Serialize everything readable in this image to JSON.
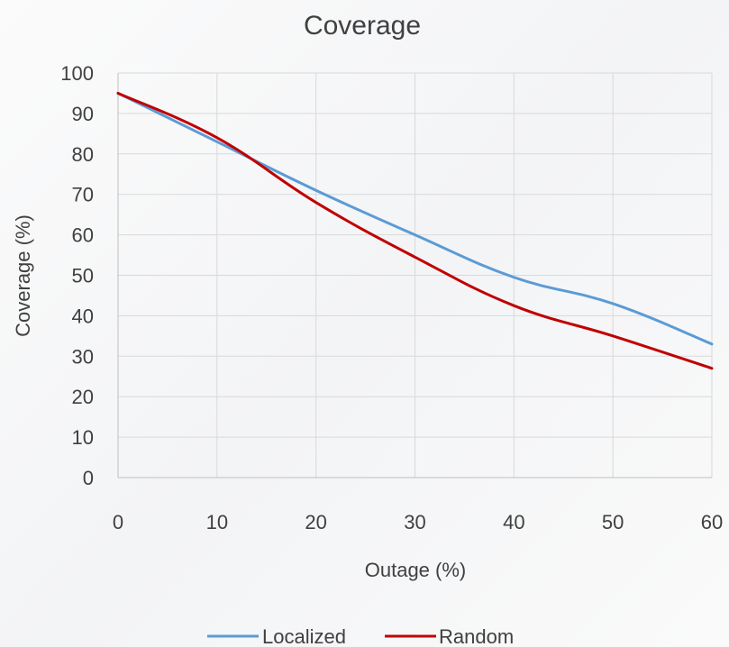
{
  "chart_data": {
    "type": "line",
    "title": "Coverage",
    "xlabel": "Outage (%)",
    "ylabel": "Coverage (%)",
    "xlim": [
      0,
      60
    ],
    "ylim": [
      0,
      100
    ],
    "x_ticks": [
      0,
      10,
      20,
      30,
      40,
      50,
      60
    ],
    "y_ticks": [
      0,
      10,
      20,
      30,
      40,
      50,
      60,
      70,
      80,
      90,
      100
    ],
    "grid": true,
    "legend_position": "bottom",
    "series": [
      {
        "name": "Localized",
        "color": "#5b9bd5",
        "x": [
          0,
          10,
          20,
          30,
          40,
          50,
          60
        ],
        "y": [
          95,
          83,
          71,
          60,
          49.5,
          43,
          33
        ]
      },
      {
        "name": "Random",
        "color": "#c00000",
        "x": [
          0,
          10,
          20,
          30,
          40,
          50,
          60
        ],
        "y": [
          95,
          84,
          68,
          54.5,
          42.5,
          35,
          27
        ]
      }
    ]
  }
}
